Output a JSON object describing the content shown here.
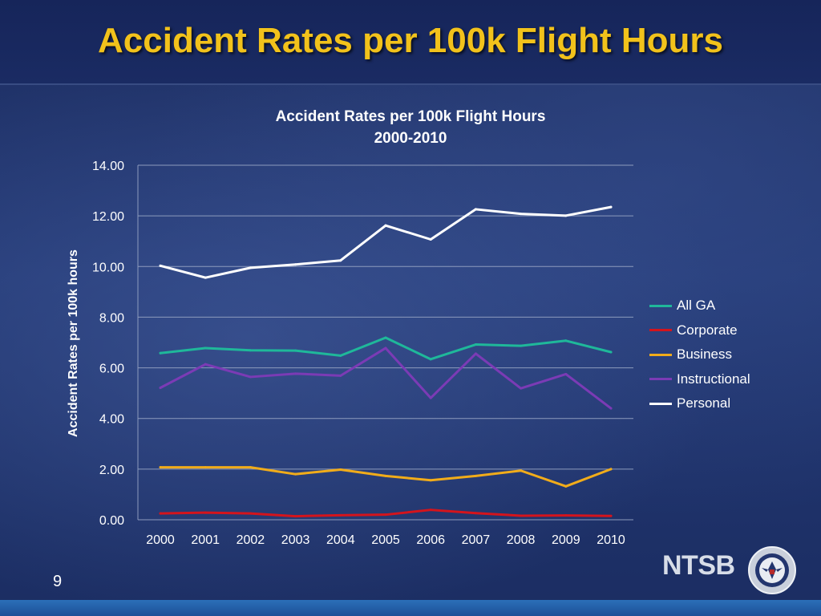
{
  "slide": {
    "title": "Accident Rates per 100k Flight Hours",
    "page_number": "9",
    "logo_text": "NTSB"
  },
  "chart_data": {
    "type": "line",
    "title": "Accident Rates per 100k Flight Hours",
    "subtitle": "2000-2010",
    "xlabel": "",
    "ylabel": "Accident Rates per 100k hours",
    "categories": [
      "2000",
      "2001",
      "2002",
      "2003",
      "2004",
      "2005",
      "2006",
      "2007",
      "2008",
      "2009",
      "2010"
    ],
    "ylim": [
      0,
      14
    ],
    "yticks": [
      "0.00",
      "2.00",
      "4.00",
      "6.00",
      "8.00",
      "10.00",
      "12.00",
      "14.00"
    ],
    "grid": true,
    "legend_position": "right",
    "series": [
      {
        "name": "All GA",
        "color": "#1fb89a",
        "values": [
          6.58,
          6.78,
          6.69,
          6.68,
          6.48,
          7.19,
          6.34,
          6.92,
          6.87,
          7.07,
          6.62
        ]
      },
      {
        "name": "Corporate",
        "color": "#d4141c",
        "values": [
          0.25,
          0.28,
          0.25,
          0.14,
          0.18,
          0.2,
          0.39,
          0.26,
          0.16,
          0.17,
          0.15
        ]
      },
      {
        "name": "Business",
        "color": "#f1ac1a",
        "values": [
          2.07,
          2.07,
          2.07,
          1.8,
          1.98,
          1.73,
          1.56,
          1.73,
          1.94,
          1.32,
          2.0
        ]
      },
      {
        "name": "Instructional",
        "color": "#7b3bb5",
        "values": [
          5.21,
          6.14,
          5.64,
          5.77,
          5.69,
          6.78,
          4.81,
          6.56,
          5.19,
          5.75,
          4.4
        ]
      },
      {
        "name": "Personal",
        "color": "#ffffff",
        "values": [
          10.03,
          9.56,
          9.95,
          10.08,
          10.24,
          11.62,
          11.07,
          12.26,
          12.08,
          12.01,
          12.35
        ]
      }
    ]
  }
}
